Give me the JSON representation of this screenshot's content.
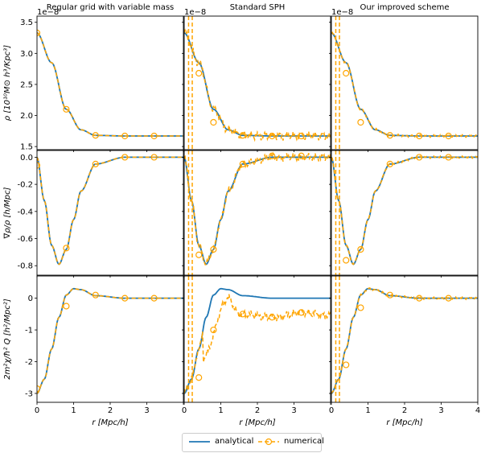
{
  "figure": {
    "column_titles": [
      "Regular grid with variable mass",
      "Standard SPH",
      "Our improved scheme"
    ],
    "xlabel": "r [Mpc/h]",
    "legend": {
      "analytical": "analytical",
      "numerical": "numerical"
    },
    "colors": {
      "analytical": "#1f77b4",
      "numerical": "#ffa500"
    }
  },
  "chart_data": [
    {
      "type": "line",
      "row": "density",
      "ylabel": "ρ [10¹⁰M⊙ h³/Kpc³]",
      "offset_text": "1e−8",
      "xlim": [
        0,
        4
      ],
      "ylim": [
        1.45,
        3.6
      ],
      "yticks": [
        1.5,
        2.0,
        2.5,
        3.0,
        3.5
      ],
      "analytical": {
        "x": [
          0,
          0.4,
          0.8,
          1.2,
          1.6,
          2.4,
          3.2,
          4.0
        ],
        "y": [
          3.33,
          2.85,
          2.1,
          1.77,
          1.68,
          1.67,
          1.67,
          1.67
        ]
      },
      "numerical_markers": {
        "Regular grid with variable mass": {
          "x": [
            0,
            0.8,
            1.6,
            2.4,
            3.2
          ],
          "y": [
            3.33,
            2.1,
            1.68,
            1.67,
            1.67
          ]
        },
        "Standard SPH": {
          "x": [
            0.4,
            0.8,
            1.6,
            2.4,
            3.2
          ],
          "y": [
            2.68,
            1.89,
            1.68,
            1.67,
            1.67
          ]
        },
        "Our improved scheme": {
          "x": [
            0.4,
            0.8,
            1.6,
            2.4,
            3.2
          ],
          "y": [
            2.68,
            1.89,
            1.68,
            1.67,
            1.67
          ]
        }
      }
    },
    {
      "type": "line",
      "row": "gradient",
      "ylabel": "∇ρ/ρ [h/Mpc]",
      "xlim": [
        0,
        4
      ],
      "ylim": [
        -0.87,
        0.05
      ],
      "yticks": [
        0.0,
        -0.2,
        -0.4,
        -0.6,
        -0.8
      ],
      "analytical": {
        "x": [
          0,
          0.2,
          0.4,
          0.6,
          0.8,
          1.0,
          1.2,
          1.6,
          2.4,
          3.2,
          4.0
        ],
        "y": [
          0,
          -0.32,
          -0.65,
          -0.79,
          -0.68,
          -0.46,
          -0.25,
          -0.05,
          0,
          0,
          0
        ]
      },
      "numerical_markers": {
        "Regular grid with variable mass": {
          "x": [
            0,
            0.8,
            1.6,
            2.4,
            3.2
          ],
          "y": [
            -0.06,
            -0.67,
            -0.05,
            0,
            0
          ]
        },
        "Standard SPH": {
          "x": [
            0.4,
            0.8,
            1.6,
            2.4,
            3.2
          ],
          "y": [
            -0.72,
            -0.68,
            -0.05,
            0.01,
            0.01
          ]
        },
        "Our improved scheme": {
          "x": [
            0.4,
            0.8,
            1.6,
            2.4,
            3.2
          ],
          "y": [
            -0.76,
            -0.68,
            -0.05,
            0,
            0
          ]
        }
      }
    },
    {
      "type": "line",
      "row": "quantum potential",
      "ylabel": "2m²χ/ħ² Q [h²/Mpc²]",
      "xlim": [
        0,
        4
      ],
      "ylim": [
        -3.28,
        0.7
      ],
      "yticks": [
        0,
        -1,
        -2,
        -3
      ],
      "analytical": {
        "x": [
          0,
          0.2,
          0.4,
          0.6,
          0.8,
          1.0,
          1.2,
          1.6,
          2.4,
          3.2,
          4.0
        ],
        "y": [
          -3.0,
          -2.55,
          -1.6,
          -0.6,
          0.1,
          0.3,
          0.27,
          0.08,
          0,
          0,
          0
        ]
      },
      "numerical_markers": {
        "Regular grid with variable mass": {
          "x": [
            0,
            0.8,
            1.6,
            2.4,
            3.2
          ],
          "y": [
            -2.85,
            -0.25,
            0.1,
            0,
            0
          ]
        },
        "Standard SPH": {
          "x": [
            0.4,
            0.8,
            1.6,
            2.4,
            3.2
          ],
          "y": [
            -2.5,
            -1.0,
            -0.5,
            -0.6,
            -0.45
          ]
        },
        "Our improved scheme": {
          "x": [
            0.4,
            0.8,
            1.6,
            2.4,
            3.2
          ],
          "y": [
            -2.1,
            -0.3,
            0.1,
            0,
            0
          ]
        }
      }
    }
  ],
  "xticks": [
    0,
    1,
    2,
    3,
    4
  ]
}
